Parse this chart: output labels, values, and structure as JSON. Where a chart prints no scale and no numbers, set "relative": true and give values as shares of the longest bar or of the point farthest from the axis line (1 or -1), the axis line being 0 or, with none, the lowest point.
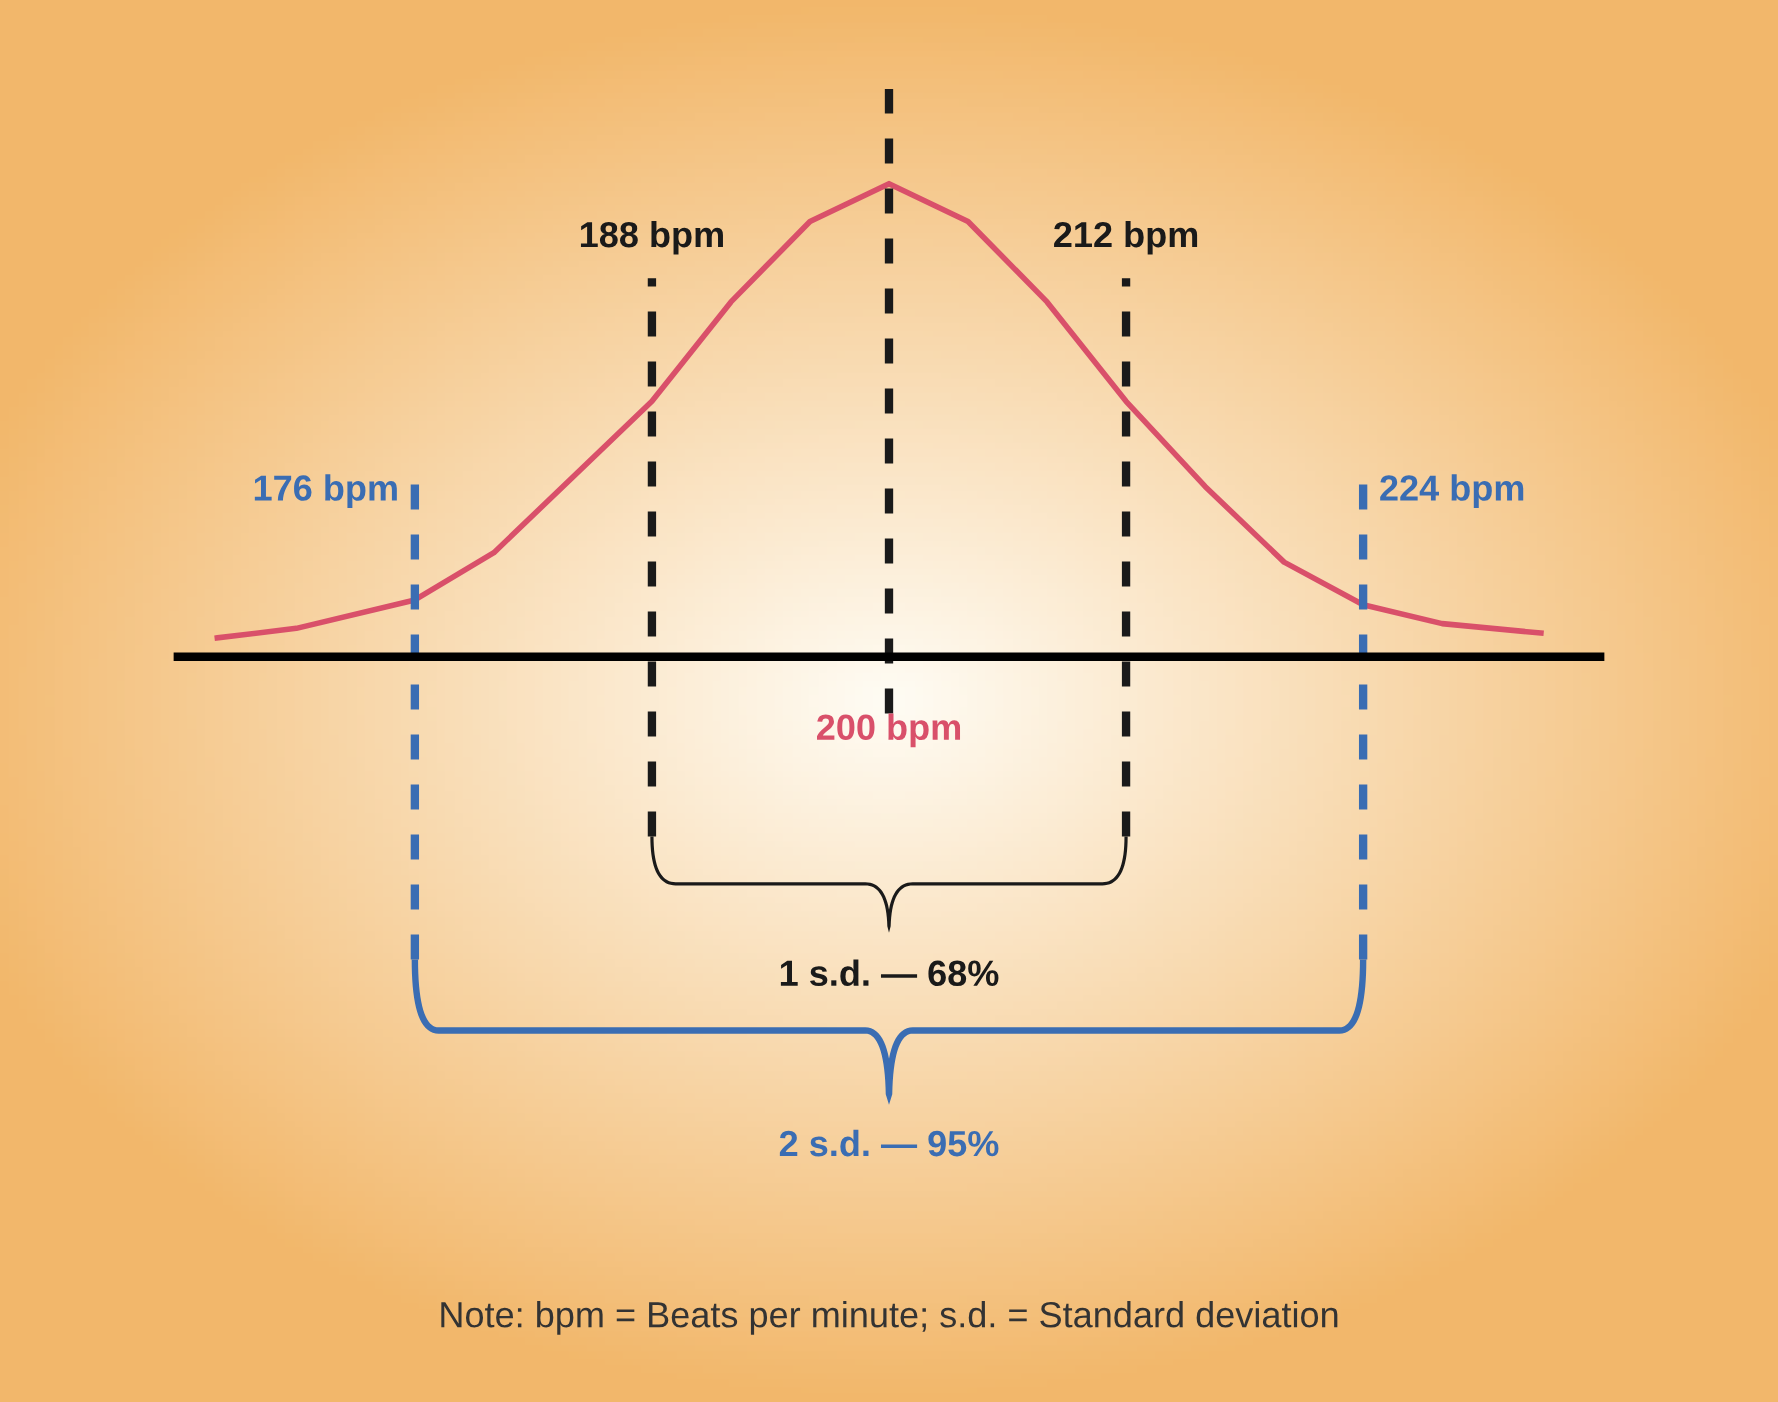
{
  "chart_data": {
    "type": "line",
    "relative": true,
    "x": [
      166,
      170,
      176,
      180,
      184,
      188,
      192,
      196,
      200,
      204,
      208,
      212,
      216,
      220,
      224,
      228,
      233
    ],
    "xlim": [
      164,
      236
    ],
    "xticks": [
      {
        "value": 188,
        "label": "188 bpm"
      },
      {
        "value": 212,
        "label": "212 bpm"
      }
    ],
    "series": [
      {
        "color": "#d9506a",
        "values": [
          0.04,
          0.06,
          0.12,
          0.22,
          0.38,
          0.54,
          0.75,
          0.92,
          1.0,
          0.92,
          0.75,
          0.54,
          0.36,
          0.2,
          0.11,
          0.07,
          0.05
        ]
      }
    ],
    "ref_lines": [
      {
        "axis": "x",
        "value": 176,
        "label": "176 bpm",
        "color": "#3a6db3",
        "line_style": "dashed"
      },
      {
        "axis": "x",
        "value": 188,
        "color": "#1a1a1a",
        "line_style": "dashed"
      },
      {
        "axis": "x",
        "value": 200,
        "label": "200 bpm",
        "color": "#1a1a1a",
        "line_style": "dashed"
      },
      {
        "axis": "x",
        "value": 212,
        "color": "#1a1a1a",
        "line_style": "dashed"
      },
      {
        "axis": "x",
        "value": 224,
        "label": "224 bpm",
        "color": "#3a6db3",
        "line_style": "dashed"
      }
    ],
    "annotations": [
      "1 s.d. — 68%",
      "2 s.d. — 95%",
      "Note: bpm = Beats per minute; s.d. = Standard deviation"
    ],
    "marker": "none",
    "line_style": "solid"
  }
}
